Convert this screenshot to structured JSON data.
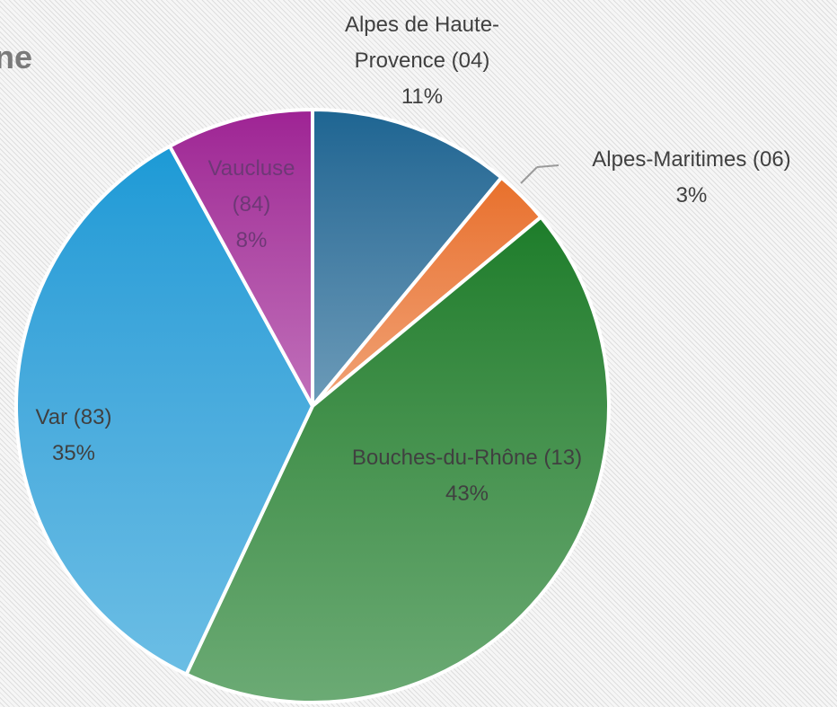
{
  "chart_data": {
    "type": "pie",
    "title": "ne",
    "categories": [
      "Alpes de Haute-Provence (04)",
      "Alpes-Maritimes (06)",
      "Bouches-du-Rhône (13)",
      "Var (83)",
      "Vaucluse (84)"
    ],
    "values": [
      11,
      3,
      43,
      35,
      8
    ],
    "value_labels": [
      "11%",
      "3%",
      "43%",
      "35%",
      "8%"
    ],
    "colors": [
      "#1d6592",
      "#e8702a",
      "#1c7d2a",
      "#1b9ad6",
      "#9e2294"
    ]
  }
}
